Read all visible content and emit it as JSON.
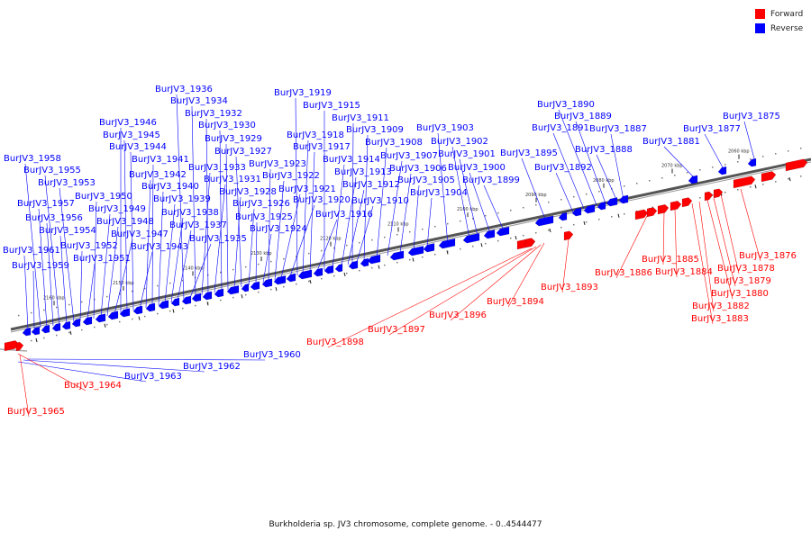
{
  "legend": [
    {
      "label": "Forward",
      "color": "#ff0000"
    },
    {
      "label": "Reverse",
      "color": "#0000ff"
    }
  ],
  "caption": "Burkholderia sp. JV3 chromosome, complete genome. - 0..4544477",
  "strand_colors": {
    "forward": "#ff0000",
    "reverse": "#0000ff",
    "backbone": "#555555"
  },
  "scale_labels": [
    "2060 kbp",
    "2070 kbp",
    "2080 kbp",
    "2090 kbp",
    "2100 kbp",
    "2110 kbp",
    "2120 kbp",
    "2130 kbp",
    "2140 kbp",
    "2150 kbp",
    "2160 kbp"
  ],
  "genes_reverse": [
    "BurJV3_1875",
    "BurJV3_1877",
    "BurJV3_1881",
    "BurJV3_1887",
    "BurJV3_1888",
    "BurJV3_1889",
    "BurJV3_1890",
    "BurJV3_1891",
    "BurJV3_1892",
    "BurJV3_1895",
    "BurJV3_1899",
    "BurJV3_1900",
    "BurJV3_1901",
    "BurJV3_1902",
    "BurJV3_1903",
    "BurJV3_1904",
    "BurJV3_1905",
    "BurJV3_1906",
    "BurJV3_1907",
    "BurJV3_1908",
    "BurJV3_1909",
    "BurJV3_1910",
    "BurJV3_1911",
    "BurJV3_1912",
    "BurJV3_1913",
    "BurJV3_1914",
    "BurJV3_1915",
    "BurJV3_1916",
    "BurJV3_1917",
    "BurJV3_1918",
    "BurJV3_1919",
    "BurJV3_1920",
    "BurJV3_1921",
    "BurJV3_1922",
    "BurJV3_1923",
    "BurJV3_1924",
    "BurJV3_1925",
    "BurJV3_1926",
    "BurJV3_1927",
    "BurJV3_1928",
    "BurJV3_1929",
    "BurJV3_1930",
    "BurJV3_1931",
    "BurJV3_1932",
    "BurJV3_1933",
    "BurJV3_1934",
    "BurJV3_1935",
    "BurJV3_1936",
    "BurJV3_1937",
    "BurJV3_1938",
    "BurJV3_1939",
    "BurJV3_1940",
    "BurJV3_1941",
    "BurJV3_1942",
    "BurJV3_1943",
    "BurJV3_1944",
    "BurJV3_1945",
    "BurJV3_1946",
    "BurJV3_1947",
    "BurJV3_1948",
    "BurJV3_1949",
    "BurJV3_1950",
    "BurJV3_1951",
    "BurJV3_1952",
    "BurJV3_1953",
    "BurJV3_1954",
    "BurJV3_1955",
    "BurJV3_1956",
    "BurJV3_1957",
    "BurJV3_1958",
    "BurJV3_1959",
    "BurJV3_1960",
    "BurJV3_1961",
    "BurJV3_1962",
    "BurJV3_1963"
  ],
  "genes_forward": [
    "BurJV3_1876",
    "BurJV3_1878",
    "BurJV3_1879",
    "BurJV3_1880",
    "BurJV3_1882",
    "BurJV3_1883",
    "BurJV3_1884",
    "BurJV3_1885",
    "BurJV3_1886",
    "BurJV3_1893",
    "BurJV3_1894",
    "BurJV3_1896",
    "BurJV3_1897",
    "BurJV3_1898",
    "BurJV3_1964",
    "BurJV3_1965"
  ]
}
